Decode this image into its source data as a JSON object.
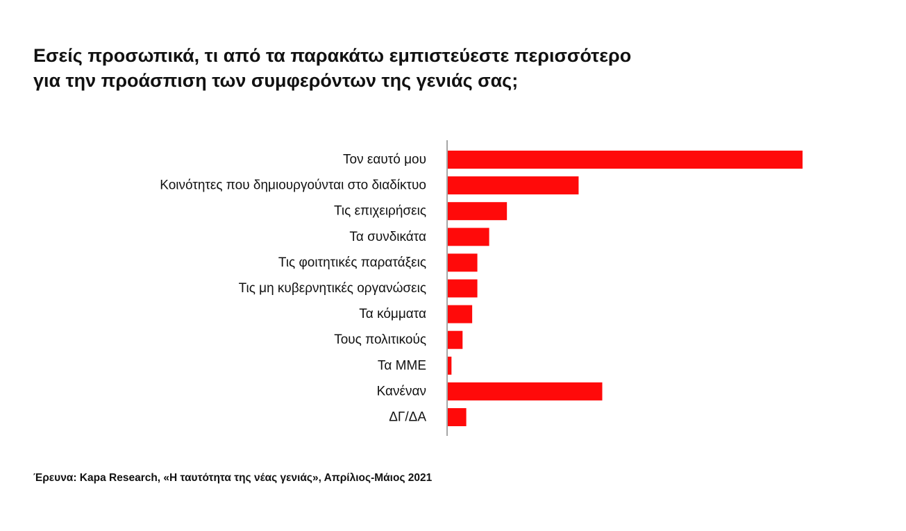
{
  "title_lines": [
    "Εσείς προσωπικά, τι από τα παρακάτω εμπιστεύεστε περισσότερο",
    "για την προάσπιση των συμφερόντων της γενιάς σας;"
  ],
  "source": "Έρευνα: Kapa Research, «Η ταυτότητα της νέας γενιάς», Απρίλιος-Μάιος 2021",
  "chart_data": {
    "type": "bar",
    "orientation": "horizontal",
    "title": "Εσείς προσωπικά, τι από τα παρακάτω εμπιστεύεστε περισσότερο για την προάσπιση των συμφερόντων της γενιάς σας;",
    "categories": [
      "Τον εαυτό μου",
      "Κοινότητες που δημιουργούνται στο διαδίκτυο",
      "Τις επιχειρήσεις",
      "Τα συνδικάτα",
      "Τις φοιτητικές παρατάξεις",
      "Τις μη κυβερνητικές οργανώσεις",
      "Τα κόμματα",
      "Τους πολιτικούς",
      "Τα ΜΜΕ",
      "Κανέναν",
      "ΔΓ/ΔΑ"
    ],
    "values": [
      48,
      17.7,
      8,
      5.6,
      4,
      4,
      3.3,
      2,
      0.5,
      20.9,
      2.5
    ],
    "xlim": [
      0,
      48
    ],
    "grid": false,
    "bar_color": "#ff0a0a",
    "axis_color": "#888888"
  }
}
